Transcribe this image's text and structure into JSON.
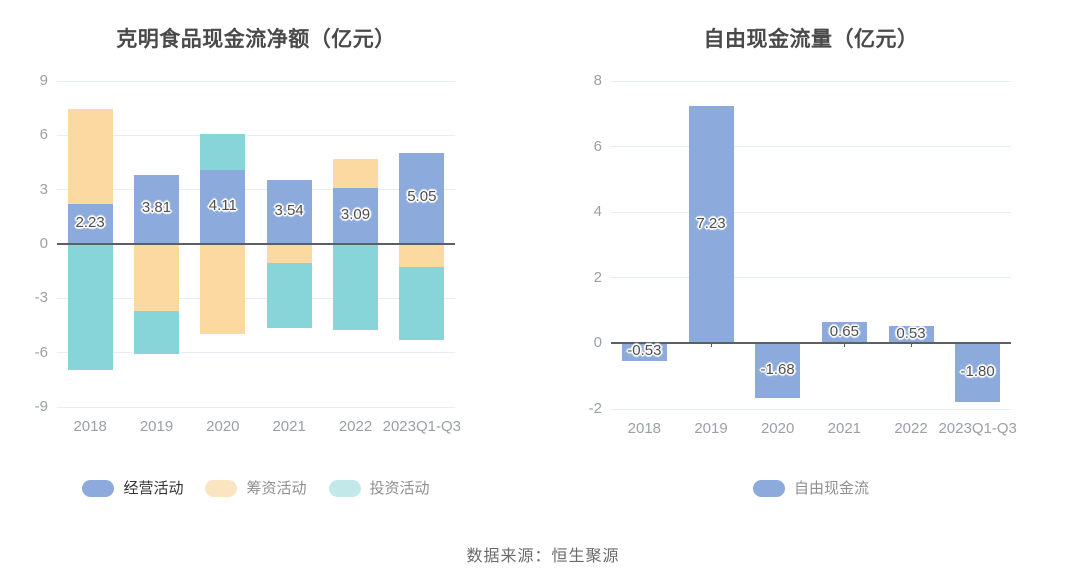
{
  "page": {
    "source": "数据来源：恒生聚源"
  },
  "chart_data": [
    {
      "type": "bar",
      "variant": "stacked",
      "title": "克明食品现金流净额（亿元）",
      "categories": [
        "2018",
        "2019",
        "2020",
        "2021",
        "2022",
        "2023Q1-Q3"
      ],
      "ylim": [
        -9,
        9
      ],
      "y_ticks": [
        9,
        6,
        3,
        0,
        -3,
        -6,
        -9
      ],
      "grid": true,
      "legend_position": "bottom",
      "series": [
        {
          "id": "operating",
          "name": "经营活动",
          "color": "#8CAADC",
          "legend_color": "#8CAADC",
          "legend_text_color": "#333333",
          "values": [
            2.23,
            3.81,
            4.11,
            3.54,
            3.09,
            5.05
          ],
          "labels": [
            "2.23",
            "3.81",
            "4.11",
            "3.54",
            "3.09",
            "5.05"
          ]
        },
        {
          "id": "financing",
          "name": "筹资活动",
          "color": "#FCD9A0",
          "legend_color": "#FBE5C1",
          "legend_text_color": "#8f8f8f",
          "values": [
            5.2,
            -3.7,
            -4.95,
            -1.03,
            1.62,
            -1.25
          ]
        },
        {
          "id": "investing",
          "name": "投资活动",
          "color": "#87D5D8",
          "legend_color": "#C2E8EA",
          "legend_text_color": "#8f8f8f",
          "values": [
            -6.98,
            -2.35,
            1.95,
            -3.6,
            -4.73,
            -4.05
          ]
        }
      ]
    },
    {
      "type": "bar",
      "variant": "simple",
      "title": "自由现金流量（亿元）",
      "categories": [
        "2018",
        "2019",
        "2020",
        "2021",
        "2022",
        "2023Q1-Q3"
      ],
      "ylim": [
        -2,
        8
      ],
      "y_ticks": [
        8,
        6,
        4,
        2,
        0,
        -2
      ],
      "grid": true,
      "legend_position": "bottom",
      "series": [
        {
          "id": "free-cash-flow",
          "name": "自由现金流",
          "color": "#8CAADC",
          "legend_color": "#8CAADC",
          "legend_text_color": "#8f8f8f",
          "values": [
            -0.53,
            7.23,
            -1.68,
            0.65,
            0.53,
            -1.8
          ],
          "labels": [
            "-0.53",
            "7.23",
            "-1.68",
            "0.65",
            "0.53",
            "-1.80"
          ]
        }
      ]
    }
  ]
}
